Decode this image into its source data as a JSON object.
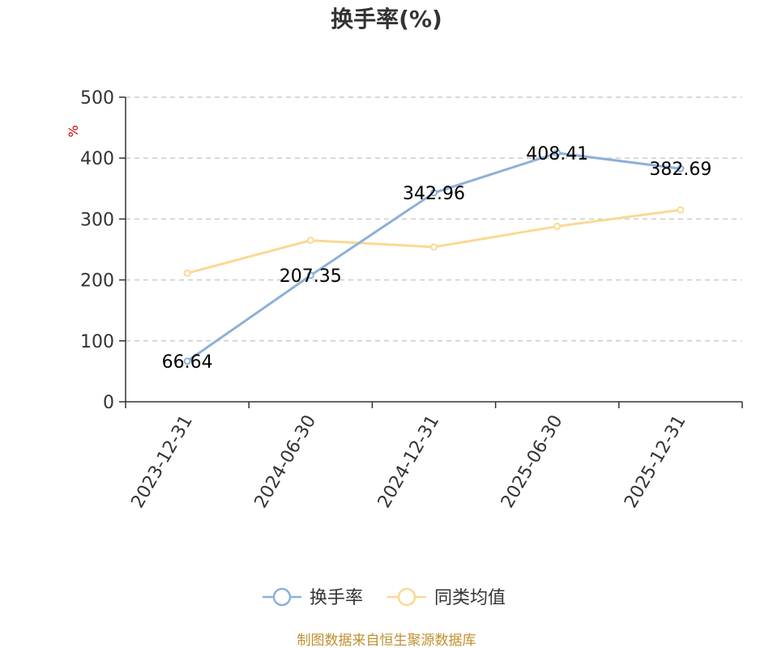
{
  "chart_data": {
    "type": "line",
    "title": "换手率(%)",
    "ylabel": "%",
    "xlabel": "",
    "categories": [
      "2023-12-31",
      "2024-06-30",
      "2024-12-31",
      "2025-06-30",
      "2025-12-31"
    ],
    "ylim": [
      0,
      500
    ],
    "yticks": [
      "0",
      "100",
      "200",
      "300",
      "400",
      "500"
    ],
    "grid": true,
    "legend_position": "bottom",
    "series": [
      {
        "name": "换手率",
        "color": "#8eb0d8",
        "values": [
          66.64,
          207.35,
          342.96,
          408.41,
          382.69
        ],
        "labels": [
          "66.64",
          "207.35",
          "342.96",
          "408.41",
          "382.69"
        ]
      },
      {
        "name": "同类均值",
        "color": "#fad994",
        "values": [
          211,
          265,
          254,
          288,
          315
        ]
      }
    ]
  },
  "source": "制图数据来自恒生聚源数据库"
}
